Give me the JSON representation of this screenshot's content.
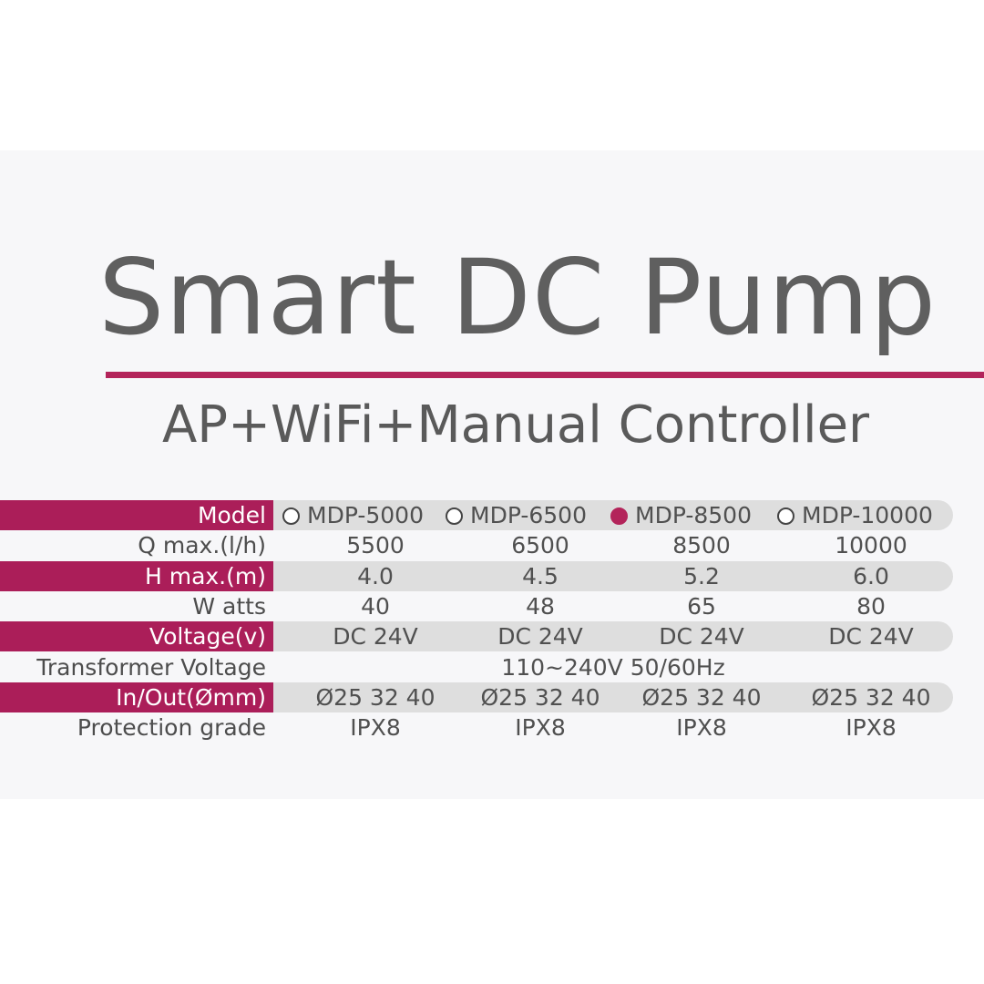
{
  "title": "Smart DC Pump",
  "subtitle": "AP+WiFi+Manual Controller",
  "accent_color": "#ab1e59",
  "models": [
    {
      "name": "MDP-5000",
      "selected": false
    },
    {
      "name": "MDP-6500",
      "selected": false
    },
    {
      "name": "MDP-8500",
      "selected": true
    },
    {
      "name": "MDP-10000",
      "selected": false
    }
  ],
  "rows": {
    "model": {
      "label": "Model"
    },
    "q_max": {
      "label": "Q max.(l/h)",
      "values": [
        "5500",
        "6500",
        "8500",
        "10000"
      ]
    },
    "h_max": {
      "label": "H max.(m)",
      "values": [
        "4.0",
        "4.5",
        "5.2",
        "6.0"
      ]
    },
    "watts": {
      "label": "W atts",
      "values": [
        "40",
        "48",
        "65",
        "80"
      ]
    },
    "voltage": {
      "label": "Voltage(v)",
      "values": [
        "DC 24V",
        "DC 24V",
        "DC 24V",
        "DC 24V"
      ]
    },
    "transformer": {
      "label": "Transformer Voltage",
      "value": "110~240V 50/60Hz"
    },
    "in_out": {
      "label": "In/Out(Ømm)",
      "values": [
        "Ø25 32 40",
        "Ø25 32 40",
        "Ø25 32 40",
        "Ø25 32 40"
      ]
    },
    "protection": {
      "label": "Protection grade",
      "values": [
        "IPX8",
        "IPX8",
        "IPX8",
        "IPX8"
      ]
    }
  }
}
